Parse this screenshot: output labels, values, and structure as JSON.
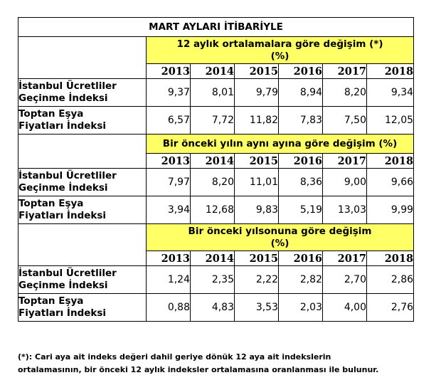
{
  "title": "MART AYLARI İTİBARİYLE",
  "years": [
    "2013",
    "2014",
    "2015",
    "2016",
    "2017",
    "2018"
  ],
  "sections": [
    {
      "header_line1": "12 aylık ortalamalara göre değişim (*)",
      "header_line2": "(%)",
      "rows": [
        {
          "label_line1": "İstanbul Ücretliler",
          "label_line2": "Geçinme İndeksi",
          "values": [
            "9,37",
            "8,01",
            "9,79",
            "8,94",
            "8,20",
            "9,34"
          ]
        },
        {
          "label_line1": "Toptan Eşya",
          "label_line2": "Fiyatları İndeksi",
          "values": [
            "6,57",
            "7,72",
            "11,82",
            "7,83",
            "7,50",
            "12,05"
          ]
        }
      ]
    },
    {
      "header_line1": "Bir önceki yılın aynı ayına göre değişim (%)",
      "header_line2": "",
      "rows": [
        {
          "label_line1": "İstanbul Ücretliler",
          "label_line2": "Geçinme İndeksi",
          "values": [
            "7,97",
            "8,20",
            "11,01",
            "8,36",
            "9,00",
            "9,66"
          ]
        },
        {
          "label_line1": "Toptan Eşya",
          "label_line2": "Fiyatları İndeksi",
          "values": [
            "3,94",
            "12,68",
            "9,83",
            "5,19",
            "13,03",
            "9,99"
          ]
        }
      ]
    },
    {
      "header_line1": "Bir önceki yılsonuna göre değişim",
      "header_line2": "(%)",
      "rows": [
        {
          "label_line1": "İstanbul Ücretliler",
          "label_line2": "Geçinme İndeksi",
          "values": [
            "1,24",
            "2,35",
            "2,22",
            "2,82",
            "2,70",
            "2,86"
          ]
        },
        {
          "label_line1": "Toptan Eşya",
          "label_line2": "Fiyatları İndeksi",
          "values": [
            "0,88",
            "4,83",
            "3,53",
            "2,03",
            "4,00",
            "2,76"
          ]
        }
      ]
    }
  ],
  "footnote_line1": "(*): Cari aya ait indeks değeri dahil geriye dönük 12 aya ait indekslerin",
  "footnote_line2": "ortalamasının, bir önceki 12 aylık indeksler ortalamasına oranlanması ile bulunur.",
  "colors": {
    "header_fill": "#ffff66",
    "border": "#000000"
  }
}
